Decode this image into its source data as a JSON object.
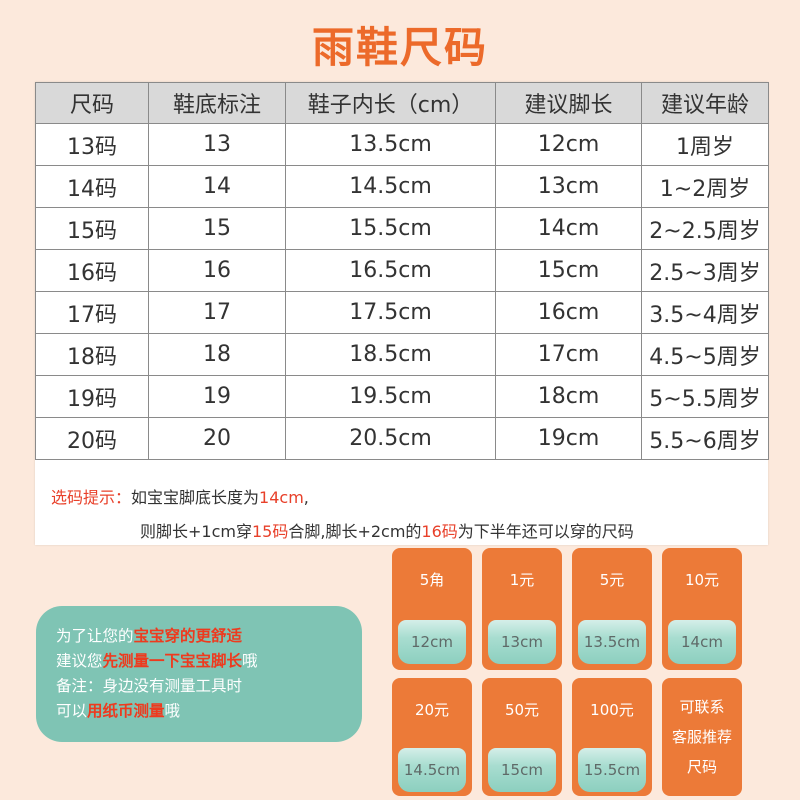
{
  "title": "雨鞋尺码",
  "table": {
    "headers": [
      "尺码",
      "鞋底标注",
      "鞋子内长（cm）",
      "建议脚长",
      "建议年龄"
    ],
    "rows": [
      [
        "13码",
        "13",
        "13.5cm",
        "12cm",
        "1周岁"
      ],
      [
        "14码",
        "14",
        "14.5cm",
        "13cm",
        "1~2周岁"
      ],
      [
        "15码",
        "15",
        "15.5cm",
        "14cm",
        "2~2.5周岁"
      ],
      [
        "16码",
        "16",
        "16.5cm",
        "15cm",
        "2.5~3周岁"
      ],
      [
        "17码",
        "17",
        "17.5cm",
        "16cm",
        "3.5~4周岁"
      ],
      [
        "18码",
        "18",
        "18.5cm",
        "17cm",
        "4.5~5周岁"
      ],
      [
        "19码",
        "19",
        "19.5cm",
        "18cm",
        "5~5.5周岁"
      ],
      [
        "20码",
        "20",
        "20.5cm",
        "19cm",
        "5.5~6周岁"
      ]
    ]
  },
  "tip": {
    "label": "选码提示：",
    "line1_a": "如宝宝脚底长度为",
    "line1_b": "14cm",
    "line1_c": ",",
    "line2_a": "则脚长+1cm穿",
    "line2_b": "15码",
    "line2_c": "合脚,脚长+2cm的",
    "line2_d": "16码",
    "line2_e": "为下半年还可以穿的尺码"
  },
  "bubble": {
    "l1_a": "为了让您的",
    "l1_b": "宝宝穿的更舒适",
    "l2_a": "建议您",
    "l2_b": "先测量一下宝宝脚长",
    "l2_c": "哦",
    "l3": "备注：身边没有测量工具时",
    "l4_a": "可以",
    "l4_b": "用纸币测量",
    "l4_c": "哦"
  },
  "coins": [
    {
      "denom": "5角",
      "length": "12cm"
    },
    {
      "denom": "1元",
      "length": "13cm"
    },
    {
      "denom": "5元",
      "length": "13.5cm"
    },
    {
      "denom": "10元",
      "length": "14cm"
    },
    {
      "denom": "20元",
      "length": "14.5cm"
    },
    {
      "denom": "50元",
      "length": "15cm"
    },
    {
      "denom": "100元",
      "length": "15.5cm"
    }
  ],
  "contact": {
    "line1": "可联系",
    "line2": "客服推荐",
    "line3": "尺码"
  },
  "colors": {
    "accent": "#ec6a2a",
    "orange_tile": "#ec7a38",
    "teal": "#7fc4b4",
    "highlight": "#e8402a",
    "background": "#fce9dc"
  }
}
